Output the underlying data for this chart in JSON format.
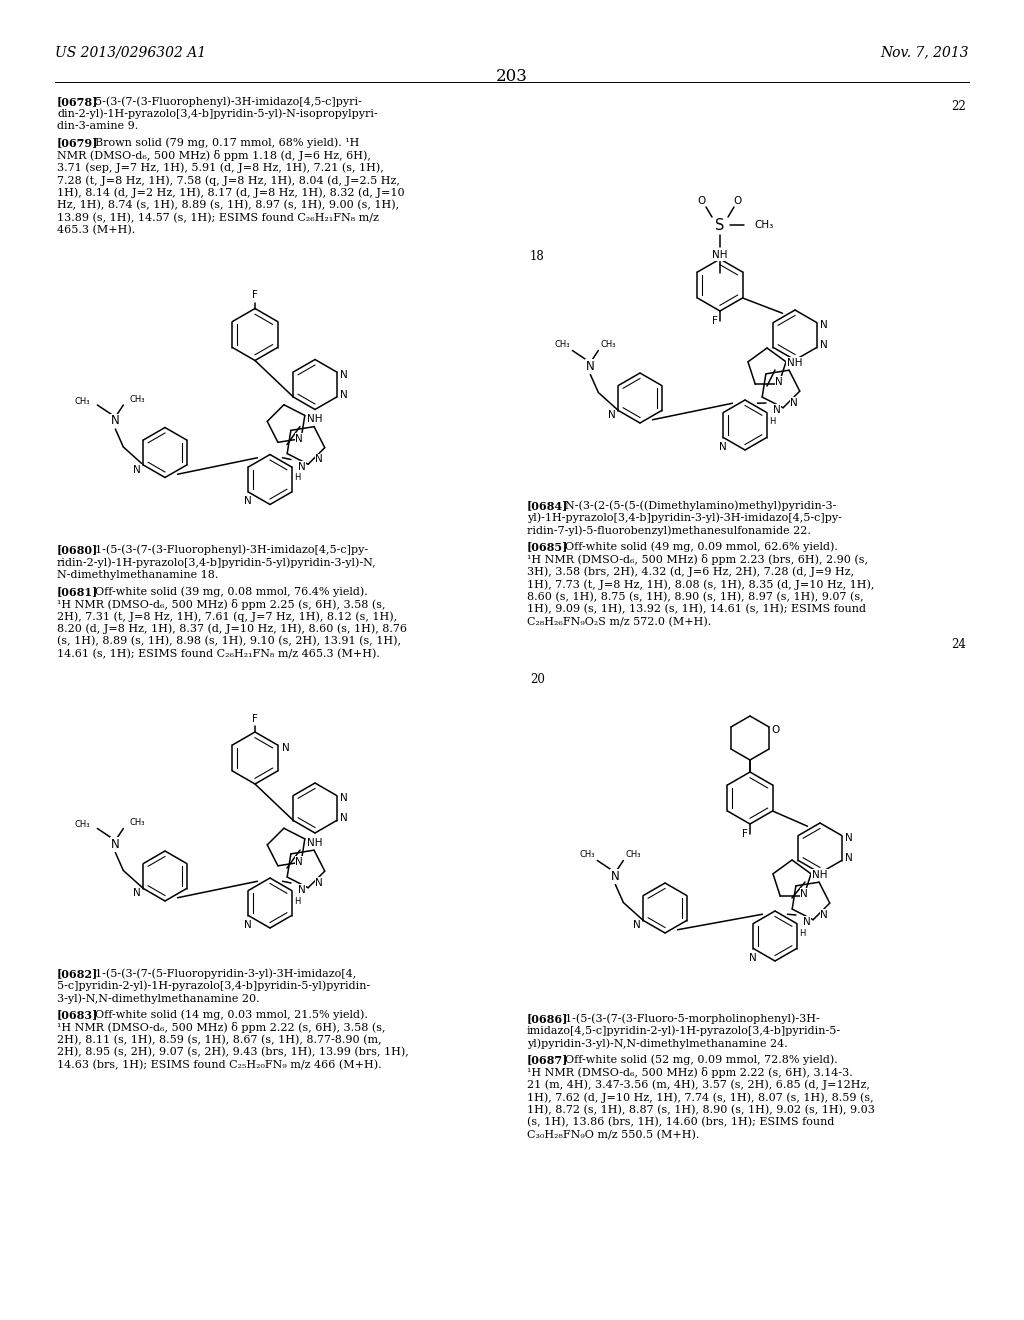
{
  "page_header_left": "US 2013/0296302 A1",
  "page_header_right": "Nov. 7, 2013",
  "page_number": "203",
  "background_color": "#ffffff",
  "paragraphs": [
    {
      "tag": "[0678]",
      "text": "  5-(3-(7-(3-Fluorophenyl)-3H-imidazo[4,5-c]pyri-\ndin-2-yl)-1H-pyrazolo[3,4-b]pyridin-5-yl)-N-isopropylpyri-\ndin-3-amine 9."
    },
    {
      "tag": "[0679]",
      "text": "  Brown solid (79 mg, 0.17 mmol, 68% yield). ¹H\nNMR (DMSO-d₆, 500 MHz) δ ppm 1.18 (d, J=6 Hz, 6H),\n3.71 (sep, J=7 Hz, 1H), 5.91 (d, J=8 Hz, 1H), 7.21 (s, 1H),\n7.28 (t, J=8 Hz, 1H), 7.58 (q, J=8 Hz, 1H), 8.04 (d, J=2.5 Hz,\n1H), 8.14 (d, J=2 Hz, 1H), 8.17 (d, J=8 Hz, 1H), 8.32 (d, J=10\nHz, 1H), 8.74 (s, 1H), 8.89 (s, 1H), 8.97 (s, 1H), 9.00 (s, 1H),\n13.89 (s, 1H), 14.57 (s, 1H); ESIMS found C₂₆H₂₁FN₈ m/z\n465.3 (M+H)."
    },
    {
      "tag": "[0680]",
      "text": "  1-(5-(3-(7-(3-Fluorophenyl)-3H-imidazo[4,5-c]py-\nridin-2-yl)-1H-pyrazolo[3,4-b]pyridin-5-yl)pyridin-3-yl)-N,\nN-dimethylmethanamine 18."
    },
    {
      "tag": "[0681]",
      "text": "  Off-white solid (39 mg, 0.08 mmol, 76.4% yield).\n¹H NMR (DMSO-d₆, 500 MHz) δ ppm 2.25 (s, 6H), 3.58 (s,\n2H), 7.31 (t, J=8 Hz, 1H), 7.61 (q, J=7 Hz, 1H), 8.12 (s, 1H),\n8.20 (d, J=8 Hz, 1H), 8.37 (d, J=10 Hz, 1H), 8.60 (s, 1H), 8.76\n(s, 1H), 8.89 (s, 1H), 8.98 (s, 1H), 9.10 (s, 2H), 13.91 (s, 1H),\n14.61 (s, 1H); ESIMS found C₂₆H₂₁FN₈ m/z 465.3 (M+H)."
    },
    {
      "tag": "[0682]",
      "text": "  1-(5-(3-(7-(5-Fluoropyridin-3-yl)-3H-imidazo[4,\n5-c]pyridin-2-yl)-1H-pyrazolo[3,4-b]pyridin-5-yl)pyridin-\n3-yl)-N,N-dimethylmethanamine 20."
    },
    {
      "tag": "[0683]",
      "text": "  Off-white solid (14 mg, 0.03 mmol, 21.5% yield).\n¹H NMR (DMSO-d₆, 500 MHz) δ ppm 2.22 (s, 6H), 3.58 (s,\n2H), 8.11 (s, 1H), 8.59 (s, 1H), 8.67 (s, 1H), 8.77-8.90 (m,\n2H), 8.95 (s, 2H), 9.07 (s, 2H), 9.43 (brs, 1H), 13.99 (brs, 1H),\n14.63 (brs, 1H); ESIMS found C₂₅H₂₀FN₉ m/z 466 (M+H)."
    },
    {
      "tag": "[0684]",
      "text": "  N-(3-(2-(5-(5-((Dimethylamino)methyl)pyridin-3-\nyl)-1H-pyrazolo[3,4-b]pyridin-3-yl)-3H-imidazo[4,5-c]py-\nridin-7-yl)-5-fluorobenzyl)methanesulfonamide 22."
    },
    {
      "tag": "[0685]",
      "text": "  Off-white solid (49 mg, 0.09 mmol, 62.6% yield).\n¹H NMR (DMSO-d₆, 500 MHz) δ ppm 2.23 (brs, 6H), 2.90 (s,\n3H), 3.58 (brs, 2H), 4.32 (d, J=6 Hz, 2H), 7.28 (d, J=9 Hz,\n1H), 7.73 (t, J=8 Hz, 1H), 8.08 (s, 1H), 8.35 (d, J=10 Hz, 1H),\n8.60 (s, 1H), 8.75 (s, 1H), 8.90 (s, 1H), 8.97 (s, 1H), 9.07 (s,\n1H), 9.09 (s, 1H), 13.92 (s, 1H), 14.61 (s, 1H); ESIMS found\nC₂₈H₂₆FN₉O₂S m/z 572.0 (M+H)."
    },
    {
      "tag": "[0686]",
      "text": "  1-(5-(3-(7-(3-Fluoro-5-morpholinophenyl)-3H-\nimidazo[4,5-c]pyridin-2-yl)-1H-pyrazolo[3,4-b]pyridin-5-\nyl)pyridin-3-yl)-N,N-dimethylmethanamine 24."
    },
    {
      "tag": "[0687]",
      "text": "  Off-white solid (52 mg, 0.09 mmol, 72.8% yield).\n¹H NMR (DMSO-d₆, 500 MHz) δ ppm 2.22 (s, 6H), 3.14-3.\n21 (m, 4H), 3.47-3.56 (m, 4H), 3.57 (s, 2H), 6.85 (d, J=12Hz,\n1H), 7.62 (d, J=10 Hz, 1H), 7.74 (s, 1H), 8.07 (s, 1H), 8.59 (s,\n1H), 8.72 (s, 1H), 8.87 (s, 1H), 8.90 (s, 1H), 9.02 (s, 1H), 9.03\n(s, 1H), 13.86 (brs, 1H), 14.60 (brs, 1H); ESIMS found\nC₃₀H₂₈FN₉O m/z 550.5 (M+H)."
    }
  ]
}
